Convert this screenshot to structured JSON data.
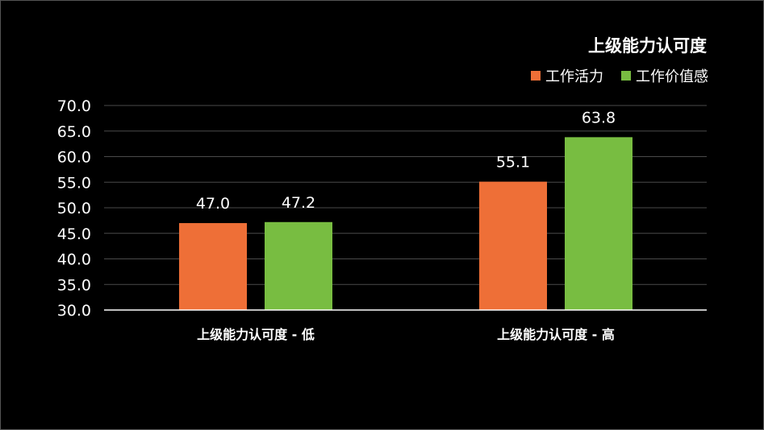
{
  "chart_data": {
    "type": "bar",
    "title": "上级能力认可度",
    "categories": [
      "上级能力认可度 - 低",
      "上级能力认可度 - 高"
    ],
    "series": [
      {
        "name": "工作活力",
        "color": "#ee6f37",
        "values": [
          47.0,
          55.1
        ]
      },
      {
        "name": "工作价值感",
        "color": "#78bd41",
        "values": [
          47.2,
          63.8
        ]
      }
    ],
    "ylim": [
      30.0,
      70.0
    ],
    "yticks": [
      "30.0",
      "35.0",
      "40.0",
      "45.0",
      "50.0",
      "55.0",
      "60.0",
      "65.0",
      "70.0"
    ],
    "data_labels": [
      [
        "47.0",
        "55.1"
      ],
      [
        "47.2",
        "63.8"
      ]
    ],
    "grid": true,
    "legend_position": "top-right"
  }
}
